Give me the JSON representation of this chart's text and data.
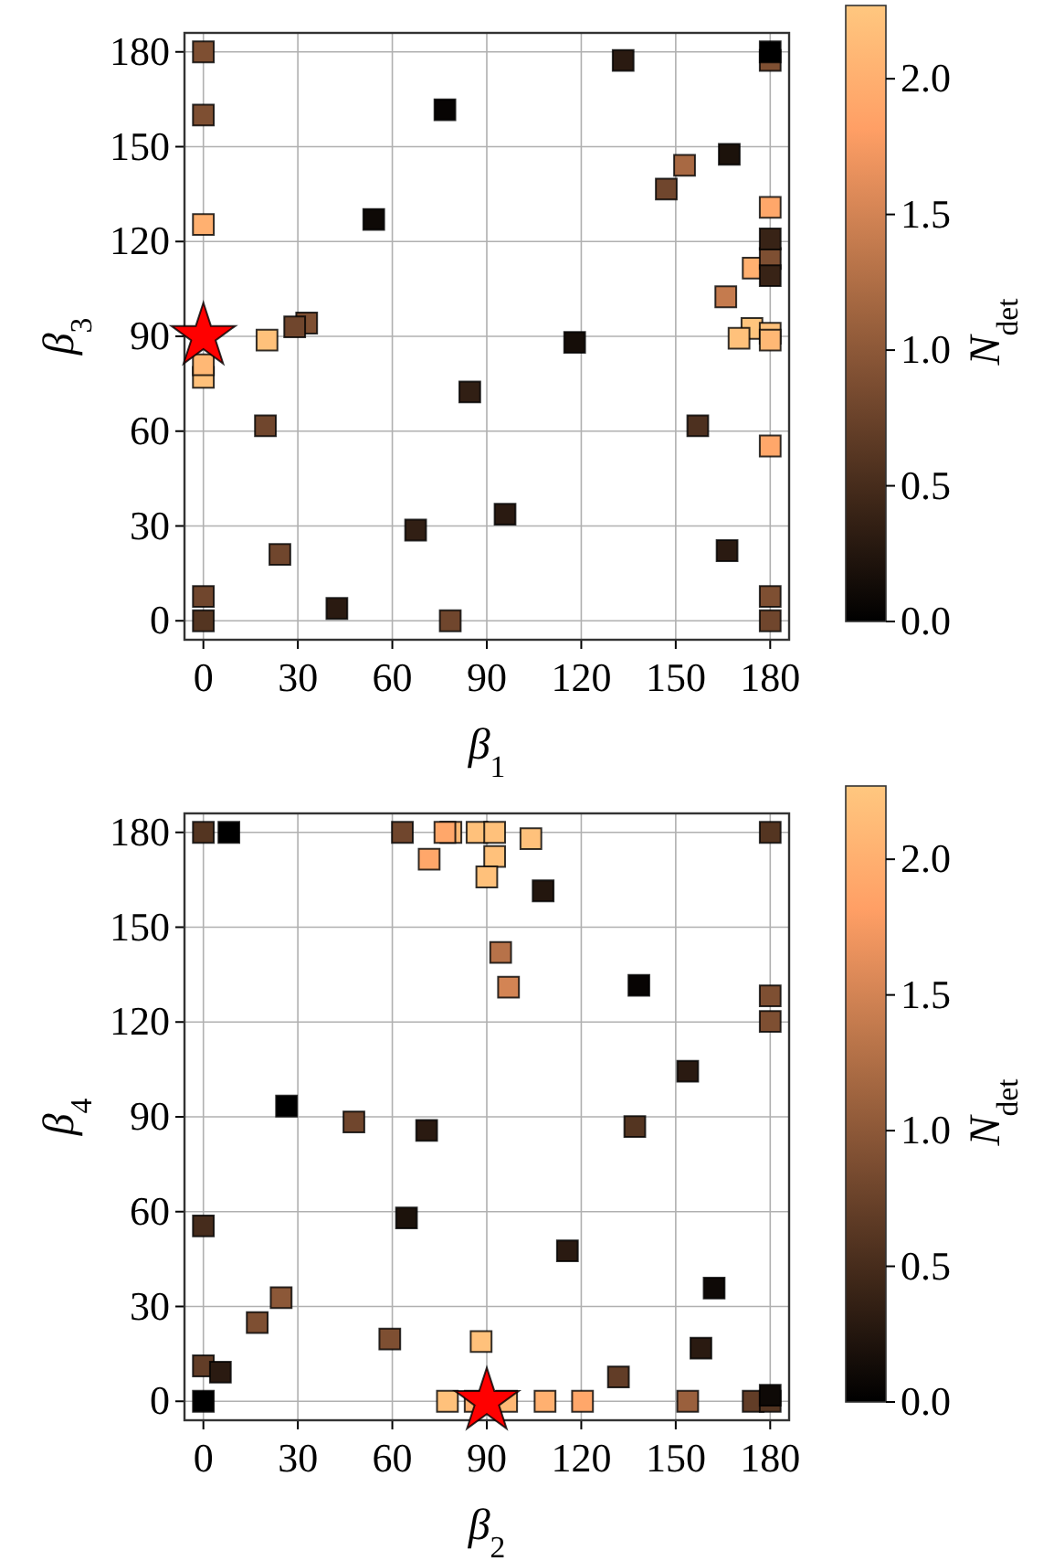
{
  "chart_data": [
    {
      "type": "scatter",
      "xlabel": "β$_{1}$",
      "ylabel": "β$_{3}$",
      "clabel": "N$_{det}$",
      "xlim": [
        -6,
        186
      ],
      "ylim": [
        -6,
        186
      ],
      "xticks": [
        0,
        30,
        60,
        90,
        120,
        150,
        180
      ],
      "yticks": [
        0,
        30,
        60,
        90,
        120,
        150,
        180
      ],
      "clim": [
        0,
        2.27
      ],
      "cticks": [
        {
          "value": 0,
          "label": "0.0"
        },
        {
          "value": 0.5,
          "label": "0.5"
        },
        {
          "value": 1,
          "label": "1.0"
        },
        {
          "value": 1.5,
          "label": "1.5"
        },
        {
          "value": 2,
          "label": "2.0"
        }
      ],
      "grid": true,
      "series": [
        {
          "marker": "square",
          "x": [
            0,
            0,
            0,
            0,
            0,
            0,
            0,
            20.2,
            19.7,
            29,
            32.8,
            24.3,
            42.4,
            54.1,
            76.7,
            78.4,
            67.4,
            84.6,
            95.8,
            117.9,
            133.3,
            147,
            152.8,
            167,
            157,
            166.3,
            165.9,
            170.1,
            174.6,
            174.2,
            180,
            180,
            180,
            180,
            180,
            180,
            180,
            180,
            180,
            180,
            180
          ],
          "values": [
            180,
            160,
            125.4,
            81,
            77,
            7.7,
            0,
            88.8,
            61.7,
            93,
            94.2,
            21,
            3.9,
            127,
            161.7,
            0,
            28.7,
            72.4,
            33.7,
            88.1,
            177.3,
            136.6,
            144.1,
            147.6,
            61.7,
            22.2,
            102.5,
            89.4,
            111.6,
            92.5,
            177.3,
            130.8,
            120.8,
            114.6,
            109.2,
            91,
            88.8,
            55.3,
            7.7,
            0,
            180
          ],
          "cvalues": [
            0.9,
            0.9,
            2.0,
            2.1,
            2.2,
            0.8,
            0.6,
            2.2,
            0.8,
            0.8,
            0.9,
            0.8,
            0.3,
            0.1,
            0.05,
            0.8,
            0.35,
            0.35,
            0.3,
            0.15,
            0.3,
            0.8,
            1.2,
            0.2,
            0.55,
            0.3,
            1.4,
            2.2,
            2.0,
            2.25,
            0.9,
            1.9,
            0.4,
            0.9,
            0.4,
            2.2,
            2.1,
            1.9,
            0.9,
            0.8,
            0.0
          ],
          "colors": [
            "#7e4f32",
            "#7e4f32",
            "#ffb070",
            "#ffb875",
            "#ffc17b",
            "#70462d",
            "#543521",
            "#ffc17b",
            "#70462d",
            "#70462d",
            "#7e4f32",
            "#70462d",
            "#2a1a11",
            "#0e0906",
            "#070403",
            "#70462d",
            "#311f14",
            "#311f14",
            "#2a1a11",
            "#150d08",
            "#2a1a11",
            "#70462d",
            "#a86943",
            "#1c120b",
            "#4d301f",
            "#2a1a11",
            "#c57b4e",
            "#ffc17b",
            "#ffb070",
            "#ffc57e",
            "#7e4f32",
            "#ffa76a",
            "#382316",
            "#7e4f32",
            "#382316",
            "#ffc17b",
            "#ffb875",
            "#ffa76a",
            "#7e4f32",
            "#70462d",
            "#000000"
          ]
        },
        {
          "marker": "star",
          "color": "#ff0000",
          "x": [
            0
          ],
          "values": [
            90
          ]
        }
      ]
    },
    {
      "type": "scatter",
      "xlabel": "β$_{2}$",
      "ylabel": "β$_{4}$",
      "clabel": "N$_{det}$",
      "xlim": [
        -6,
        186
      ],
      "ylim": [
        -6,
        186
      ],
      "xticks": [
        0,
        30,
        60,
        90,
        120,
        150,
        180
      ],
      "yticks": [
        0,
        30,
        60,
        90,
        120,
        150,
        180
      ],
      "clim": [
        0,
        2.27
      ],
      "cticks": [
        {
          "value": 0,
          "label": "0.0"
        },
        {
          "value": 0.5,
          "label": "0.5"
        },
        {
          "value": 1,
          "label": "1.0"
        },
        {
          "value": 1.5,
          "label": "1.5"
        },
        {
          "value": 2,
          "label": "2.0"
        }
      ],
      "grid": true,
      "series": [
        {
          "marker": "square",
          "x": [
            0,
            8.1,
            63.2,
            78.6,
            76.7,
            86.9,
            92.5,
            104,
            71.7,
            92.5,
            90,
            107.9,
            94.4,
            96.9,
            138.3,
            180,
            180,
            180,
            153.8,
            26.4,
            47.8,
            70.9,
            137,
            0,
            64.5,
            115.6,
            162.2,
            24.7,
            17.1,
            59.2,
            88.2,
            158,
            131.8,
            0,
            5.4,
            0,
            77.5,
            86.3,
            96.3,
            108.5,
            120.4,
            153.8,
            174.6,
            180,
            180
          ],
          "values": [
            180,
            180,
            180,
            180,
            180,
            180,
            180,
            178,
            171.5,
            172.4,
            165.9,
            161.5,
            142,
            131,
            131.6,
            180,
            128.3,
            120.2,
            104.4,
            93.4,
            88.4,
            85.7,
            86.9,
            55.5,
            58,
            47.6,
            35.8,
            32.8,
            24.9,
            19.7,
            18.9,
            16.8,
            7.7,
            11.2,
            9.2,
            0,
            0,
            0,
            0,
            0,
            0,
            0,
            0,
            1.9,
            0
          ],
          "cvalues": [
            0.6,
            0.0,
            0.8,
            2.1,
            1.9,
            2.2,
            2.2,
            2.2,
            1.9,
            2.2,
            2.2,
            0.25,
            1.3,
            1.5,
            0.05,
            0.6,
            0.9,
            0.9,
            0.3,
            0.0,
            0.8,
            0.3,
            0.6,
            0.5,
            0.2,
            0.3,
            0.1,
            1.0,
            0.9,
            0.9,
            2.2,
            0.3,
            0.7,
            0.7,
            0.3,
            0.0,
            2.2,
            2.0,
            2.1,
            2.0,
            1.9,
            1.1,
            0.7,
            0.1,
            0.6
          ],
          "colors": [
            "#543521",
            "#000000",
            "#70462d",
            "#ffb875",
            "#ffa76a",
            "#ffc17b",
            "#ffc17b",
            "#ffc17b",
            "#ffa76a",
            "#ffc17b",
            "#ffc17b",
            "#23160e",
            "#b77249",
            "#d38454",
            "#070403",
            "#543521",
            "#7e4f32",
            "#7e4f32",
            "#2a1a11",
            "#000000",
            "#70462d",
            "#2a1a11",
            "#543521",
            "#462c1c",
            "#1c120b",
            "#2a1a11",
            "#0e0906",
            "#8c5838",
            "#7e4f32",
            "#7e4f32",
            "#ffc17b",
            "#2a1a11",
            "#623d27",
            "#623d27",
            "#2a1a11",
            "#000000",
            "#ffc17b",
            "#ffb070",
            "#ffb875",
            "#ffb070",
            "#ffa76a",
            "#9a603d",
            "#623d27",
            "#0e0906",
            "#543521"
          ]
        },
        {
          "marker": "star",
          "color": "#ff0000",
          "x": [
            90
          ],
          "values": [
            0
          ]
        }
      ]
    }
  ]
}
